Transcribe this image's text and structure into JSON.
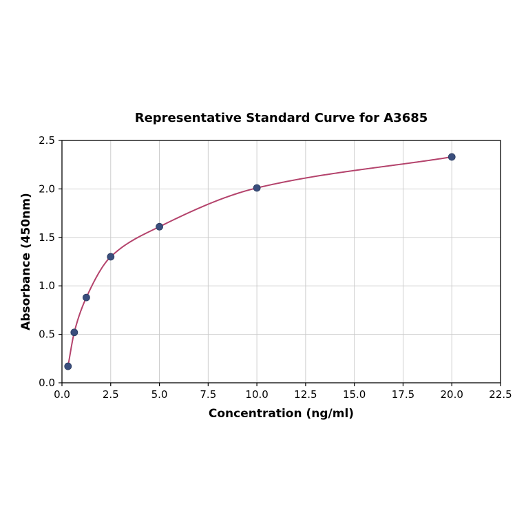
{
  "chart_data": {
    "type": "scatter",
    "title": "Representative Standard Curve for A3685",
    "xlabel": "Concentration (ng/ml)",
    "ylabel": "Absorbance (450nm)",
    "xlim": [
      0,
      22.5
    ],
    "ylim": [
      0,
      2.5
    ],
    "xticks": [
      0,
      2.5,
      5,
      7.5,
      10,
      12.5,
      15,
      17.5,
      20,
      22.5
    ],
    "xtick_labels": [
      "0.0",
      "2.5",
      "5.0",
      "7.5",
      "10.0",
      "12.5",
      "15.0",
      "17.5",
      "20.0",
      "22.5"
    ],
    "yticks": [
      0,
      0.5,
      1,
      1.5,
      2,
      2.5
    ],
    "ytick_labels": [
      "0.0",
      "0.5",
      "1.0",
      "1.5",
      "2.0",
      "2.5"
    ],
    "grid": true,
    "legend": "none",
    "series": [
      {
        "name": "standard-curve",
        "points": [
          {
            "x": 0.31,
            "y": 0.17
          },
          {
            "x": 0.63,
            "y": 0.52
          },
          {
            "x": 1.25,
            "y": 0.88
          },
          {
            "x": 2.5,
            "y": 1.3
          },
          {
            "x": 5.0,
            "y": 1.61
          },
          {
            "x": 10.0,
            "y": 2.01
          },
          {
            "x": 20.0,
            "y": 2.33
          }
        ]
      }
    ],
    "colors": {
      "curve": "#b4436c",
      "marker": "#3a4e7d",
      "grid": "#c9c9c9",
      "axis": "#000000",
      "background": "#ffffff"
    }
  }
}
